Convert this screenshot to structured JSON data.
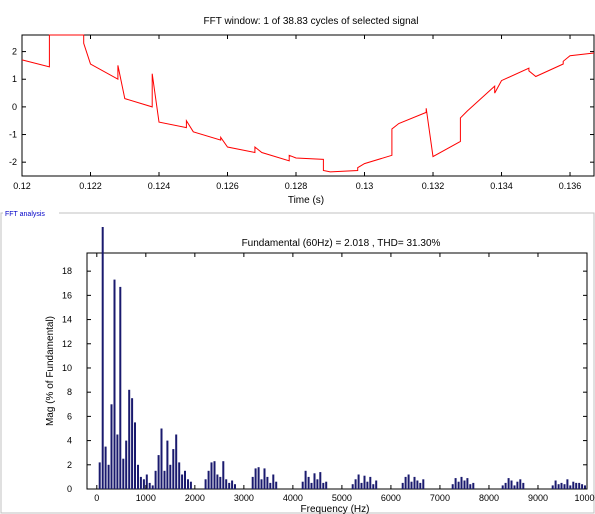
{
  "time_panel": {
    "title": "FFT window: 1 of 38.83 cycles of selected signal",
    "xlabel": "Time (s)",
    "x_ticks": [
      "0.12",
      "0.122",
      "0.124",
      "0.126",
      "0.128",
      "0.13",
      "0.132",
      "0.134",
      "0.136"
    ],
    "y_ticks": [
      "2",
      "1",
      "0",
      "-1",
      "-2"
    ]
  },
  "fft_panel": {
    "panel_label": "FFT analysis",
    "title": "Fundamental (60Hz) = 2.018 , THD= 31.30%",
    "xlabel": "Frequency (Hz)",
    "ylabel": "Mag (% of Fundamental)",
    "x_ticks": [
      "0",
      "1000",
      "2000",
      "3000",
      "4000",
      "5000",
      "6000",
      "7000",
      "8000",
      "9000",
      "10000"
    ],
    "y_ticks": [
      "18",
      "16",
      "14",
      "12",
      "10",
      "8",
      "6",
      "4",
      "2",
      "0"
    ]
  },
  "colors": {
    "signal": "#ff0000",
    "bars": "#1a1a6e",
    "panel_border": "#c0c0c0",
    "panel_label": "#0000c8"
  },
  "chart_data": [
    {
      "type": "line",
      "title": "FFT window: 1 of 38.83 cycles of selected signal",
      "xlabel": "Time (s)",
      "ylabel": "",
      "xlim": [
        0.12,
        0.1367
      ],
      "ylim": [
        -2.5,
        2.6
      ],
      "grid": false,
      "series": [
        {
          "x": [
            0.12,
            0.1208,
            0.1208,
            0.121,
            0.1218,
            0.1218,
            0.122,
            0.1228,
            0.1228,
            0.123,
            0.1238,
            0.1238,
            0.124,
            0.1248,
            0.1248,
            0.125,
            0.1258,
            0.1258,
            0.126,
            0.1268,
            0.1268,
            0.127,
            0.1278,
            0.1278,
            0.128,
            0.1288,
            0.1288,
            0.129,
            0.1298,
            0.1298,
            0.13,
            0.1308,
            0.1308,
            0.131,
            0.1318,
            0.1318,
            0.132,
            0.1328,
            0.1328,
            0.133,
            0.1338,
            0.1338,
            0.134,
            0.1348,
            0.1348,
            0.135,
            0.1358,
            0.1358,
            0.136,
            0.1367
          ],
          "y": [
            1.7,
            1.45,
            2.6,
            2.6,
            2.6,
            2.3,
            1.55,
            1.0,
            1.5,
            0.3,
            0.0,
            1.2,
            -0.55,
            -0.75,
            -0.5,
            -0.9,
            -1.2,
            -1.1,
            -1.45,
            -1.65,
            -1.45,
            -1.65,
            -1.95,
            -1.75,
            -1.85,
            -1.9,
            -2.3,
            -2.35,
            -2.3,
            -2.2,
            -2.05,
            -1.75,
            -0.8,
            -0.6,
            -0.2,
            -0.05,
            -1.8,
            -1.25,
            -0.4,
            -0.15,
            0.75,
            0.5,
            0.95,
            1.4,
            1.3,
            1.1,
            1.55,
            1.65,
            1.85,
            1.95
          ]
        }
      ]
    },
    {
      "type": "bar",
      "title": "Fundamental (60Hz) = 2.018 , THD= 31.30%",
      "xlabel": "Frequency (Hz)",
      "ylabel": "Mag (% of Fundamental)",
      "xlim": [
        -200,
        10000
      ],
      "ylim": [
        0,
        19.5
      ],
      "x": [
        60,
        120,
        180,
        240,
        300,
        360,
        420,
        480,
        540,
        600,
        660,
        720,
        780,
        840,
        900,
        960,
        1020,
        1080,
        1140,
        1200,
        1260,
        1320,
        1380,
        1440,
        1500,
        1560,
        1620,
        1680,
        1740,
        1800,
        1860,
        1920,
        2220,
        2280,
        2340,
        2400,
        2460,
        2520,
        2580,
        2640,
        2700,
        2760,
        2820,
        3180,
        3240,
        3300,
        3360,
        3420,
        3480,
        3540,
        3600,
        3660,
        4200,
        4260,
        4320,
        4380,
        4440,
        4500,
        4560,
        4620,
        4680,
        5220,
        5280,
        5340,
        5400,
        5460,
        5520,
        5580,
        5640,
        5700,
        6240,
        6300,
        6360,
        6420,
        6480,
        6540,
        6600,
        6660,
        7260,
        7320,
        7380,
        7440,
        7500,
        7560,
        7620,
        7680,
        8280,
        8340,
        8400,
        8460,
        8520,
        8580,
        8640,
        8700,
        9300,
        9360,
        9420,
        9480,
        9540,
        9600,
        9660,
        9720,
        9780,
        9840,
        9900,
        9960
      ],
      "values": [
        2.2,
        20.0,
        3.5,
        2.0,
        7.0,
        17.3,
        4.5,
        16.7,
        2.5,
        4.0,
        8.2,
        7.5,
        5.5,
        2.0,
        1.0,
        0.8,
        1.2,
        0.5,
        0.3,
        1.5,
        2.8,
        5.0,
        1.5,
        4.0,
        2.0,
        3.3,
        4.5,
        2.2,
        1.2,
        1.5,
        0.8,
        0.6,
        0.8,
        1.5,
        2.2,
        2.3,
        1.2,
        1.0,
        2.3,
        0.8,
        0.5,
        0.7,
        0.4,
        1.0,
        1.7,
        1.8,
        0.8,
        1.7,
        1.0,
        0.5,
        1.2,
        0.6,
        0.6,
        1.5,
        1.0,
        0.5,
        1.3,
        0.8,
        1.4,
        0.5,
        0.6,
        0.4,
        0.8,
        1.2,
        0.5,
        1.1,
        0.6,
        1.0,
        0.4,
        0.7,
        0.5,
        1.0,
        1.2,
        0.6,
        1.0,
        0.7,
        0.5,
        0.8,
        0.4,
        0.9,
        0.6,
        1.0,
        0.7,
        0.9,
        0.4,
        0.5,
        0.3,
        0.5,
        0.9,
        0.7,
        0.3,
        0.6,
        0.8,
        0.5,
        0.3,
        0.7,
        0.4,
        0.5,
        0.4,
        0.8,
        0.3,
        0.6,
        0.5,
        0.5,
        0.4,
        0.3
      ]
    }
  ]
}
